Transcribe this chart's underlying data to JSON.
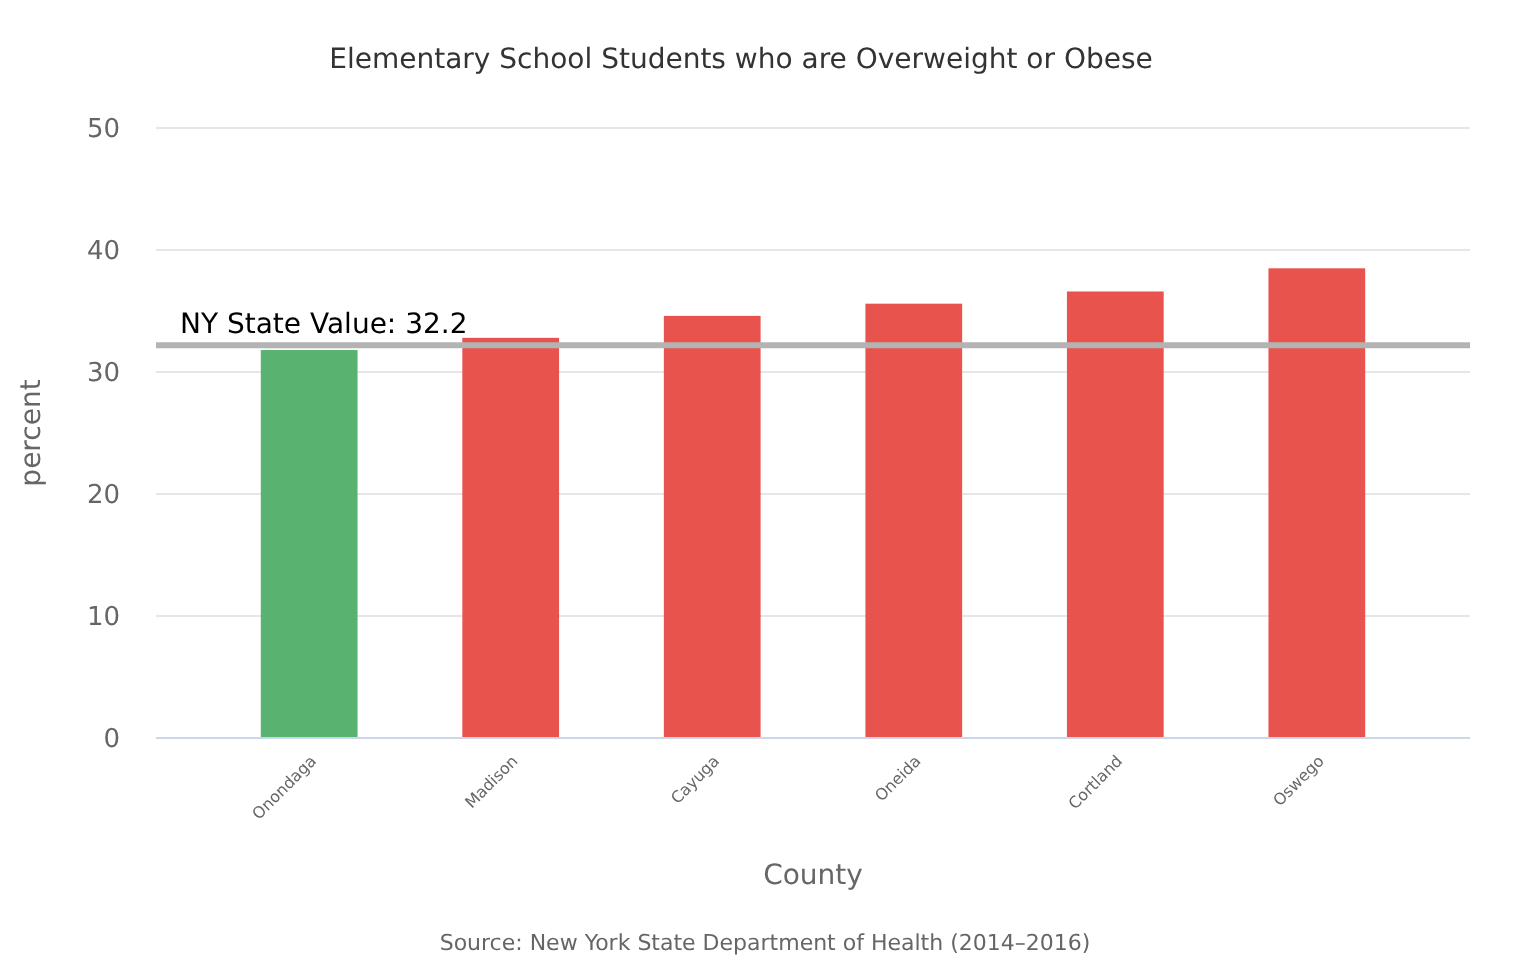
{
  "chart_data": {
    "type": "bar",
    "title": "Elementary School Students who are Overweight or Obese",
    "xlabel": "County",
    "ylabel": "percent",
    "categories": [
      "Onondaga",
      "Madison",
      "Cayuga",
      "Oneida",
      "Cortland",
      "Oswego"
    ],
    "values": [
      31.8,
      32.8,
      34.6,
      35.6,
      36.6,
      38.5
    ],
    "colors": [
      "#5ab271",
      "#e8534e",
      "#e8534e",
      "#e8534e",
      "#e8534e",
      "#e8534e"
    ],
    "ylim": [
      0,
      50
    ],
    "yticks": [
      0,
      10,
      20,
      30,
      40,
      50
    ],
    "grid": "y",
    "ref_lines": [
      {
        "axis": "y",
        "value": 32.2,
        "label": "NY State Value: 32.2",
        "color": "#b3b3b3"
      }
    ],
    "annotations": [
      "Source: New York State Department of Health (2014–2016)"
    ]
  }
}
